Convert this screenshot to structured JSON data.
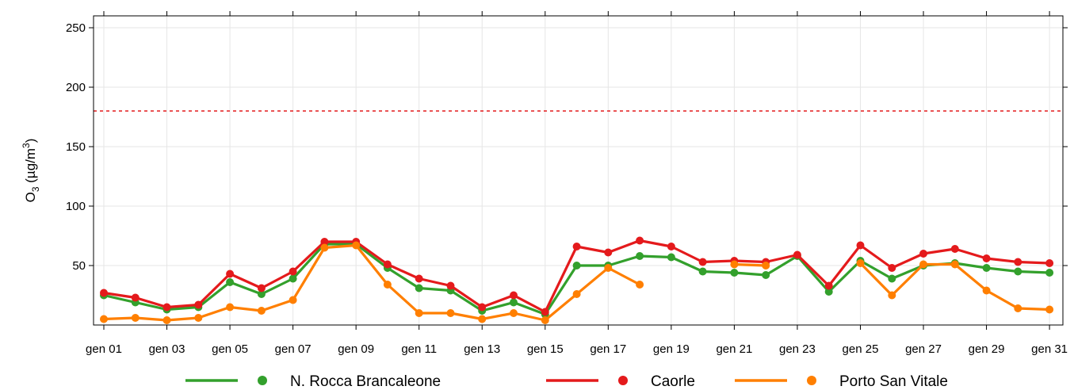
{
  "chart_data": {
    "type": "line",
    "title": "",
    "ylabel_parts": {
      "base": "O",
      "sub": "3",
      "unit_pre": " (µg/m",
      "sup": "3",
      "unit_post": ")"
    },
    "ylim": [
      0,
      260
    ],
    "yticks": [
      50,
      100,
      150,
      200,
      250
    ],
    "threshold": {
      "value": 180,
      "color": "#e41a1c",
      "style": "dashed"
    },
    "x": [
      "gen 01",
      "gen 02",
      "gen 03",
      "gen 04",
      "gen 05",
      "gen 06",
      "gen 07",
      "gen 08",
      "gen 09",
      "gen 10",
      "gen 11",
      "gen 12",
      "gen 13",
      "gen 14",
      "gen 15",
      "gen 16",
      "gen 17",
      "gen 18",
      "gen 19",
      "gen 20",
      "gen 21",
      "gen 22",
      "gen 23",
      "gen 24",
      "gen 25",
      "gen 26",
      "gen 27",
      "gen 28",
      "gen 29",
      "gen 30",
      "gen 31"
    ],
    "xtick_labels": [
      "gen 01",
      "gen 03",
      "gen 05",
      "gen 07",
      "gen 09",
      "gen 11",
      "gen 13",
      "gen 15",
      "gen 17",
      "gen 19",
      "gen 21",
      "gen 23",
      "gen 25",
      "gen 27",
      "gen 29",
      "gen 31"
    ],
    "grid": true,
    "legend_position": "bottom",
    "series": [
      {
        "name": "N. Rocca Brancaleone",
        "color": "#33a02c",
        "values": [
          25,
          19,
          13,
          15,
          36,
          26,
          39,
          68,
          68,
          48,
          31,
          29,
          12,
          19,
          9,
          50,
          50,
          58,
          57,
          45,
          44,
          42,
          58,
          28,
          54,
          39,
          50,
          52,
          48,
          45,
          44
        ]
      },
      {
        "name": "Caorle",
        "color": "#e41a1c",
        "values": [
          27,
          23,
          15,
          17,
          43,
          31,
          45,
          70,
          70,
          51,
          39,
          33,
          15,
          25,
          11,
          66,
          61,
          71,
          66,
          53,
          54,
          53,
          59,
          33,
          67,
          48,
          60,
          64,
          56,
          53,
          52
        ]
      },
      {
        "name": "Porto San Vitale",
        "color": "#ff7f00",
        "values": [
          5,
          6,
          4,
          6,
          15,
          12,
          21,
          65,
          67,
          34,
          10,
          10,
          5,
          10,
          4,
          26,
          48,
          34,
          null,
          null,
          51,
          50,
          null,
          null,
          52,
          25,
          51,
          51,
          29,
          14,
          13
        ]
      }
    ]
  }
}
